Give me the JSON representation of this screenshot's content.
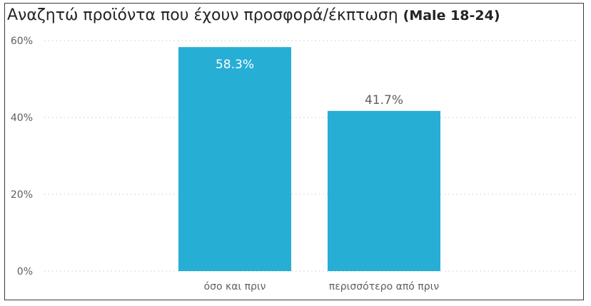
{
  "header": {
    "title": "Αναζητώ προϊόντα που έχουν προσφορά/έκπτωση",
    "subtitle": "(Male 18-24)"
  },
  "colors": {
    "bar": "#27AED5",
    "grid": "#c8c8c8",
    "label_inside": "#ffffff",
    "label_outside": "#605e5c"
  },
  "chart_data": {
    "type": "bar",
    "title": "Αναζητώ προϊόντα που έχουν προσφορά/έκπτωση (Male 18-24)",
    "categories": [
      "όσο και πριν",
      "περισσότερο από πριν"
    ],
    "values": [
      58.3,
      41.7
    ],
    "data_labels": [
      "58.3%",
      "41.7%"
    ],
    "yticks": [
      "0%",
      "20%",
      "40%",
      "60%"
    ],
    "ytick_values": [
      0,
      20,
      40,
      60
    ],
    "ylim": [
      0,
      60
    ],
    "grid": true,
    "xlabel": "",
    "ylabel": ""
  }
}
